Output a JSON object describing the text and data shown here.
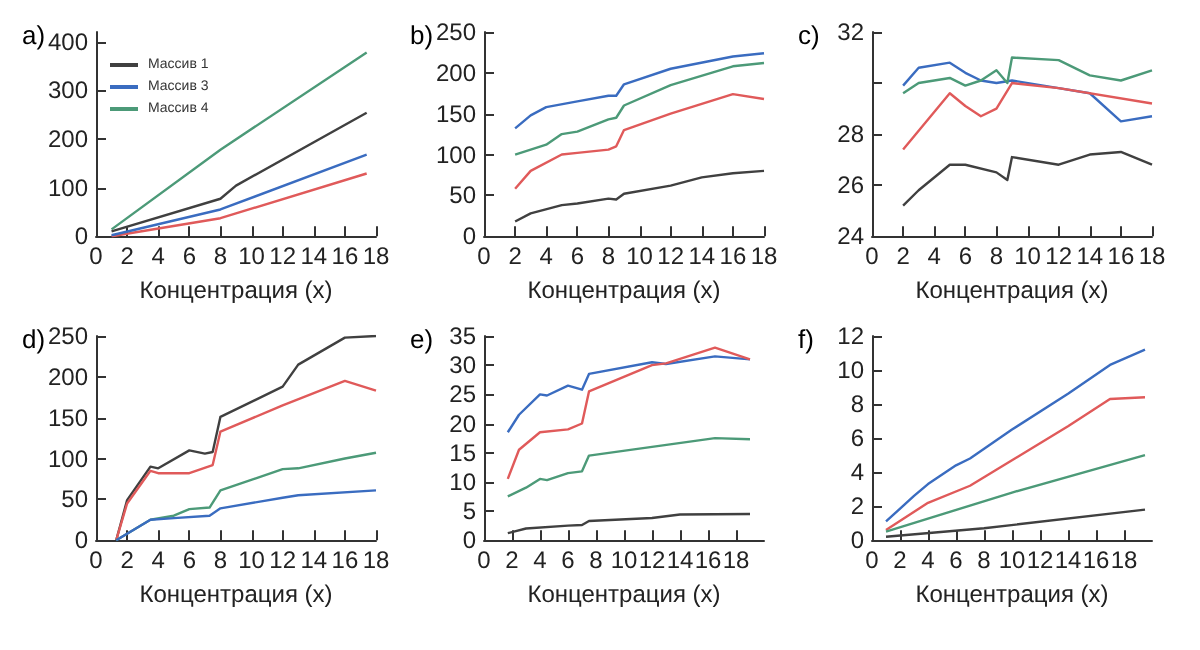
{
  "chart_data": [
    {
      "type": "line",
      "title": "a)",
      "xlabel": "Концентрация (x)",
      "xlim": [
        0,
        18
      ],
      "xticks": [
        0,
        2,
        4,
        6,
        8,
        10,
        12,
        14,
        16,
        18
      ],
      "ylim": [
        0,
        420
      ],
      "yticks": [
        0,
        100,
        200,
        300,
        400
      ],
      "legend": "top left",
      "marker": "none",
      "series": [
        {
          "name": "Массив 1",
          "color": "#404040",
          "x": [
            1,
            8,
            9,
            17.4
          ],
          "values": [
            10,
            77,
            104,
            254
          ]
        },
        {
          "color": "#e05a5a",
          "x": [
            1,
            8,
            17.4
          ],
          "values": [
            0,
            37,
            129
          ]
        },
        {
          "name": "Массив 3",
          "color": "#3a6cc0",
          "x": [
            1,
            8,
            17.4
          ],
          "values": [
            2,
            55,
            168
          ]
        },
        {
          "name": "Массив 4",
          "color": "#4c9a78",
          "x": [
            1,
            8,
            17.4
          ],
          "values": [
            14,
            178,
            378
          ]
        }
      ]
    },
    {
      "type": "line",
      "title": "b)",
      "xlabel": "Концентрация (x)",
      "xlim": [
        0,
        18
      ],
      "xticks": [
        0,
        2,
        4,
        6,
        8,
        10,
        12,
        14,
        16,
        18
      ],
      "ylim": [
        0,
        250
      ],
      "yticks": [
        0,
        50,
        100,
        150,
        200,
        250
      ],
      "marker": "none",
      "series": [
        {
          "color": "#3a6cc0",
          "x": [
            2,
            3,
            4,
            6,
            8,
            8.5,
            9,
            12,
            16,
            18
          ],
          "values": [
            132,
            148,
            158,
            165,
            172,
            172,
            186,
            205,
            220,
            224
          ]
        },
        {
          "color": "#4c9a78",
          "x": [
            2,
            4,
            5,
            6,
            8,
            8.5,
            9,
            12,
            16,
            18
          ],
          "values": [
            100,
            112,
            125,
            128,
            143,
            145,
            160,
            185,
            208,
            212
          ]
        },
        {
          "color": "#e05a5a",
          "x": [
            2,
            3,
            5,
            6,
            8,
            8.5,
            9,
            12,
            16,
            18
          ],
          "values": [
            58,
            80,
            100,
            102,
            106,
            110,
            130,
            150,
            174,
            168
          ]
        },
        {
          "color": "#404040",
          "x": [
            2,
            3,
            5,
            6,
            8,
            8.5,
            9,
            12,
            14,
            16,
            18
          ],
          "values": [
            18,
            28,
            38,
            40,
            46,
            45,
            52,
            62,
            72,
            77,
            80
          ]
        }
      ]
    },
    {
      "type": "line",
      "title": "c)",
      "xlabel": "Концентрация (x)",
      "xlim": [
        0,
        18
      ],
      "xticks": [
        0,
        2,
        4,
        6,
        8,
        10,
        12,
        14,
        16,
        18
      ],
      "ylim": [
        24,
        32
      ],
      "yticks": [
        24,
        26,
        28,
        {
          "value": 30,
          "label": null
        },
        32
      ],
      "marker": "none",
      "series": [
        {
          "color": "#3a6cc0",
          "x": [
            2,
            3,
            5,
            6,
            7,
            8,
            9,
            12,
            14,
            16,
            18
          ],
          "values": [
            29.9,
            30.6,
            30.8,
            30.4,
            30.1,
            30.0,
            30.1,
            29.8,
            29.6,
            28.5,
            28.7
          ]
        },
        {
          "color": "#4c9a78",
          "x": [
            2,
            3,
            5,
            6,
            7,
            8,
            8.7,
            9,
            12,
            14,
            16,
            18
          ],
          "values": [
            29.6,
            30.0,
            30.2,
            29.9,
            30.1,
            30.5,
            30.0,
            31.0,
            30.9,
            30.3,
            30.1,
            30.5
          ]
        },
        {
          "color": "#e05a5a",
          "x": [
            2,
            5,
            6,
            7,
            8,
            9,
            12,
            18
          ],
          "values": [
            27.4,
            29.6,
            29.1,
            28.7,
            29.0,
            30.0,
            29.8,
            29.2
          ]
        },
        {
          "color": "#404040",
          "x": [
            2,
            3,
            5,
            6,
            8,
            8.7,
            9,
            12,
            14,
            16,
            18
          ],
          "values": [
            25.2,
            25.8,
            26.8,
            26.8,
            26.5,
            26.2,
            27.1,
            26.8,
            27.2,
            27.3,
            26.8
          ]
        }
      ]
    },
    {
      "type": "line",
      "title": "d)",
      "xlabel": "Концентрация (x)",
      "xlim": [
        0,
        18
      ],
      "xticks": [
        0,
        2,
        4,
        6,
        8,
        10,
        12,
        14,
        16,
        18
      ],
      "ylim": [
        0,
        250
      ],
      "yticks": [
        0,
        50,
        100,
        150,
        200,
        250
      ],
      "marker": "none",
      "series": [
        {
          "color": "#404040",
          "x": [
            1.3,
            2,
            3.5,
            4,
            6,
            7,
            7.5,
            8,
            12,
            13,
            16,
            18
          ],
          "values": [
            0,
            49,
            90,
            88,
            110,
            106,
            108,
            151,
            188,
            215,
            248,
            250
          ]
        },
        {
          "color": "#e05a5a",
          "x": [
            1.3,
            2,
            3.5,
            4,
            6,
            7.5,
            8,
            12,
            16,
            18
          ],
          "values": [
            0,
            45,
            85,
            82,
            82,
            92,
            133,
            165,
            195,
            183
          ]
        },
        {
          "color": "#4c9a78",
          "x": [
            1.3,
            3.5,
            5,
            6,
            7.3,
            8,
            12,
            13,
            16,
            18
          ],
          "values": [
            0,
            25,
            30,
            38,
            40,
            61,
            87,
            88,
            100,
            107
          ]
        },
        {
          "color": "#3a6cc0",
          "x": [
            1.3,
            3.5,
            5,
            7.3,
            8,
            12,
            13,
            18
          ],
          "values": [
            0,
            25,
            27,
            30,
            39,
            52,
            55,
            61
          ]
        }
      ]
    },
    {
      "type": "line",
      "title": "e)",
      "xlabel": "Концентрация (x)",
      "xlim": [
        0,
        20
      ],
      "xticks": [
        0,
        2,
        4,
        6,
        8,
        10,
        12,
        14,
        16,
        18
      ],
      "ylim": [
        0,
        35
      ],
      "yticks": [
        0,
        5,
        10,
        15,
        20,
        25,
        30,
        35
      ],
      "marker": "none",
      "series": [
        {
          "color": "#3a6cc0",
          "x": [
            1.7,
            2.5,
            4,
            4.5,
            6,
            7,
            7.5,
            12,
            13,
            16.5,
            19
          ],
          "values": [
            18.5,
            21.5,
            25,
            24.8,
            26.5,
            25.8,
            28.5,
            30.5,
            30.2,
            31.5,
            31
          ]
        },
        {
          "color": "#e05a5a",
          "x": [
            1.7,
            2.5,
            4,
            6,
            7,
            7.5,
            12,
            13,
            16.5,
            19
          ],
          "values": [
            10.5,
            15.5,
            18.5,
            19,
            20,
            25.5,
            30,
            30.3,
            33,
            31
          ]
        },
        {
          "color": "#4c9a78",
          "x": [
            1.7,
            3,
            4,
            4.5,
            6,
            7,
            7.5,
            12,
            16.5,
            19
          ],
          "values": [
            7.5,
            9,
            10.5,
            10.3,
            11.5,
            11.8,
            14.5,
            16,
            17.5,
            17.3
          ]
        },
        {
          "color": "#404040",
          "x": [
            1.7,
            3,
            6,
            7,
            7.5,
            12,
            14,
            19
          ],
          "values": [
            1.2,
            2,
            2.5,
            2.6,
            3.3,
            3.8,
            4.4,
            4.5
          ]
        }
      ]
    },
    {
      "type": "line",
      "title": "f)",
      "xlabel": "Концентрация (x)",
      "xlim": [
        0,
        20
      ],
      "xticks": [
        0,
        2,
        4,
        6,
        8,
        10,
        12,
        14,
        16,
        18
      ],
      "ylim": [
        0,
        12
      ],
      "yticks": [
        0,
        2,
        4,
        6,
        8,
        10,
        12
      ],
      "marker": "none",
      "series": [
        {
          "color": "#3a6cc0",
          "x": [
            1,
            3,
            4,
            6,
            7,
            10,
            14,
            17,
            19.5
          ],
          "values": [
            1.1,
            2.6,
            3.3,
            4.4,
            4.8,
            6.5,
            8.6,
            10.3,
            11.2
          ]
        },
        {
          "color": "#e05a5a",
          "x": [
            1,
            4,
            7,
            10,
            14,
            17,
            19.5
          ],
          "values": [
            0.6,
            2.2,
            3.2,
            4.7,
            6.7,
            8.3,
            8.4
          ]
        },
        {
          "color": "#4c9a78",
          "x": [
            1,
            10,
            19.5
          ],
          "values": [
            0.5,
            2.8,
            5.0
          ]
        },
        {
          "color": "#404040",
          "x": [
            1,
            8,
            19.5
          ],
          "values": [
            0.2,
            0.7,
            1.8
          ]
        }
      ]
    }
  ]
}
